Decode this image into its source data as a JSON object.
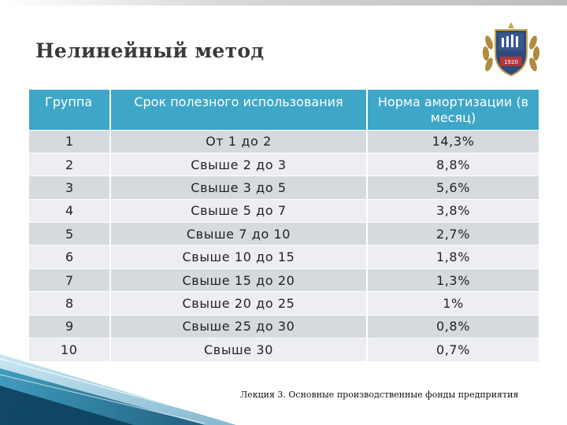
{
  "title": "Нелинейный метод",
  "table": {
    "headers": [
      "Группа",
      "Срок полезного использования",
      "Норма амортизации (в месяц)"
    ],
    "rows": [
      {
        "group": "1",
        "term": "От 1 до 2",
        "rate": "14,3%"
      },
      {
        "group": "2",
        "term": "Свыше 2 до 3",
        "rate": "8,8%"
      },
      {
        "group": "3",
        "term": "Свыше 3 до 5",
        "rate": "5,6%"
      },
      {
        "group": "4",
        "term": "Свыше 5 до 7",
        "rate": "3,8%"
      },
      {
        "group": "5",
        "term": "Свыше 7 до 10",
        "rate": "2,7%"
      },
      {
        "group": "6",
        "term": "Свыше 10 до 15",
        "rate": "1,8%"
      },
      {
        "group": "7",
        "term": "Свыше 15 до 20",
        "rate": "1,3%"
      },
      {
        "group": "8",
        "term": "Свыше 20 до 25",
        "rate": "1%"
      },
      {
        "group": "9",
        "term": "Свыше 25 до 30",
        "rate": "0,8%"
      },
      {
        "group": "10",
        "term": "Свыше 30",
        "rate": "0,7%"
      }
    ]
  },
  "logo": {
    "icon": "university-emblem-icon",
    "year": "1920"
  },
  "footer": "Лекция 3. Основные производственные фонды предприятия",
  "colors": {
    "header_bg": "#3ea7c7",
    "row_odd": "#d6d9de",
    "row_even": "#eceef1",
    "deco_accent": "#2a8fb5"
  }
}
